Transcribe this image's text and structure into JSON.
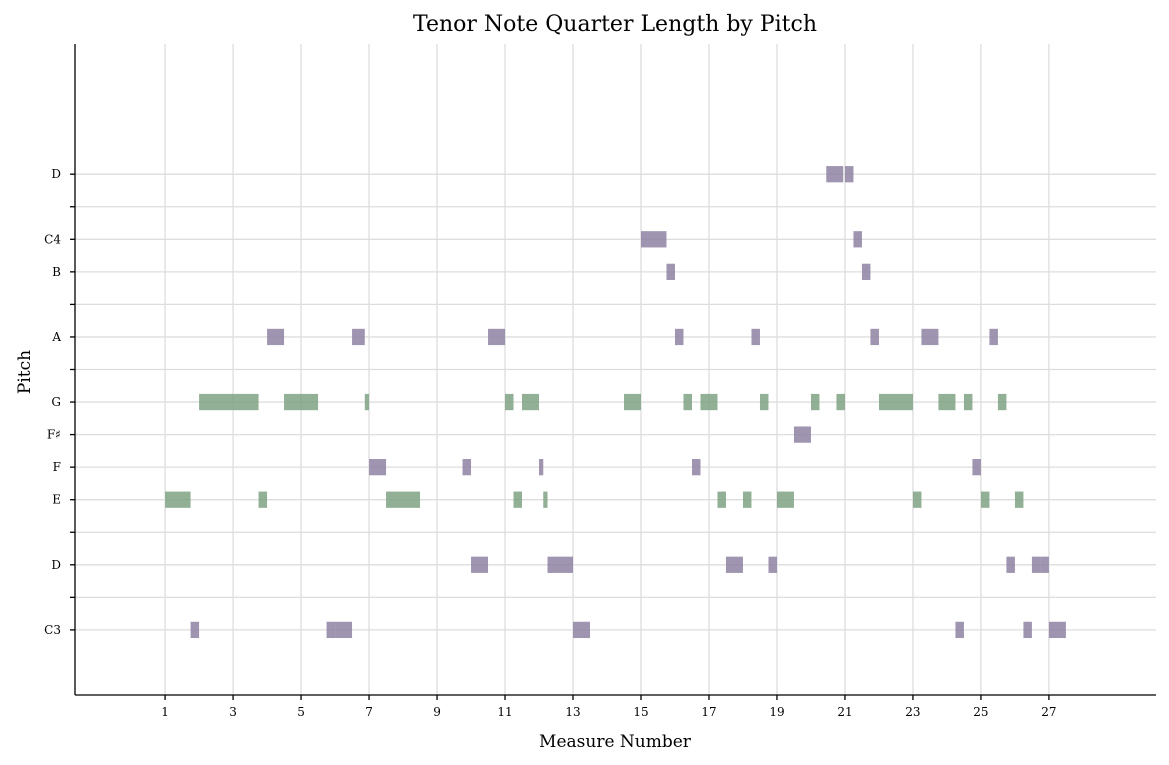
{
  "chart_data": {
    "type": "piano-roll",
    "title": "Tenor Note Quarter Length by Pitch",
    "xlabel": "Measure Number",
    "ylabel": "Pitch",
    "xlim": [
      -1.65,
      30.15
    ],
    "x_ticks": [
      1,
      3,
      5,
      7,
      9,
      11,
      13,
      15,
      17,
      19,
      21,
      23,
      25,
      27
    ],
    "ylim": [
      46,
      66
    ],
    "y_ticks": [
      {
        "midi": 48,
        "label": "C3"
      },
      {
        "midi": 49,
        "label": ""
      },
      {
        "midi": 50,
        "label": "D"
      },
      {
        "midi": 51,
        "label": ""
      },
      {
        "midi": 52,
        "label": "E"
      },
      {
        "midi": 53,
        "label": "F"
      },
      {
        "midi": 54,
        "label": "F♯"
      },
      {
        "midi": 55,
        "label": "G"
      },
      {
        "midi": 56,
        "label": ""
      },
      {
        "midi": 57,
        "label": "A"
      },
      {
        "midi": 58,
        "label": ""
      },
      {
        "midi": 59,
        "label": "B"
      },
      {
        "midi": 60,
        "label": "C4"
      },
      {
        "midi": 61,
        "label": ""
      },
      {
        "midi": 62,
        "label": "D"
      }
    ],
    "grid": true,
    "colors": {
      "purple": "#8e83a3",
      "green": "#7fa283"
    },
    "notes": [
      {
        "pitch": 62,
        "start": 20.45,
        "end": 20.95,
        "color": "purple"
      },
      {
        "pitch": 62,
        "start": 21.0,
        "end": 21.25,
        "color": "purple"
      },
      {
        "pitch": 60,
        "start": 15.0,
        "end": 15.75,
        "color": "purple"
      },
      {
        "pitch": 60,
        "start": 21.25,
        "end": 21.5,
        "color": "purple"
      },
      {
        "pitch": 59,
        "start": 15.75,
        "end": 16.0,
        "color": "purple"
      },
      {
        "pitch": 59,
        "start": 21.5,
        "end": 21.75,
        "color": "purple"
      },
      {
        "pitch": 57,
        "start": 4.0,
        "end": 4.5,
        "color": "purple"
      },
      {
        "pitch": 57,
        "start": 6.5,
        "end": 6.875,
        "color": "purple"
      },
      {
        "pitch": 57,
        "start": 10.5,
        "end": 11.0,
        "color": "purple"
      },
      {
        "pitch": 57,
        "start": 16.0,
        "end": 16.25,
        "color": "purple"
      },
      {
        "pitch": 57,
        "start": 18.25,
        "end": 18.5,
        "color": "purple"
      },
      {
        "pitch": 57,
        "start": 21.75,
        "end": 22.0,
        "color": "purple"
      },
      {
        "pitch": 57,
        "start": 23.25,
        "end": 23.75,
        "color": "purple"
      },
      {
        "pitch": 57,
        "start": 25.25,
        "end": 25.5,
        "color": "purple"
      },
      {
        "pitch": 55,
        "start": 2.0,
        "end": 3.75,
        "color": "green"
      },
      {
        "pitch": 55,
        "start": 4.5,
        "end": 5.5,
        "color": "green"
      },
      {
        "pitch": 55,
        "start": 6.875,
        "end": 7.0,
        "color": "green"
      },
      {
        "pitch": 55,
        "start": 11.0,
        "end": 11.25,
        "color": "green"
      },
      {
        "pitch": 55,
        "start": 11.5,
        "end": 12.0,
        "color": "green"
      },
      {
        "pitch": 55,
        "start": 14.5,
        "end": 15.0,
        "color": "green"
      },
      {
        "pitch": 55,
        "start": 16.25,
        "end": 16.5,
        "color": "green"
      },
      {
        "pitch": 55,
        "start": 16.75,
        "end": 17.25,
        "color": "green"
      },
      {
        "pitch": 55,
        "start": 18.5,
        "end": 18.75,
        "color": "green"
      },
      {
        "pitch": 55,
        "start": 20.0,
        "end": 20.25,
        "color": "green"
      },
      {
        "pitch": 55,
        "start": 20.75,
        "end": 21.0,
        "color": "green"
      },
      {
        "pitch": 55,
        "start": 22.0,
        "end": 23.0,
        "color": "green"
      },
      {
        "pitch": 55,
        "start": 23.75,
        "end": 24.25,
        "color": "green"
      },
      {
        "pitch": 55,
        "start": 24.5,
        "end": 24.75,
        "color": "green"
      },
      {
        "pitch": 55,
        "start": 25.5,
        "end": 25.75,
        "color": "green"
      },
      {
        "pitch": 54,
        "start": 19.5,
        "end": 20.0,
        "color": "purple"
      },
      {
        "pitch": 53,
        "start": 7.0,
        "end": 7.5,
        "color": "purple"
      },
      {
        "pitch": 53,
        "start": 9.75,
        "end": 10.0,
        "color": "purple"
      },
      {
        "pitch": 53,
        "start": 12.0,
        "end": 12.125,
        "color": "purple"
      },
      {
        "pitch": 53,
        "start": 16.5,
        "end": 16.75,
        "color": "purple"
      },
      {
        "pitch": 53,
        "start": 24.75,
        "end": 25.0,
        "color": "purple"
      },
      {
        "pitch": 52,
        "start": 1.0,
        "end": 1.75,
        "color": "green"
      },
      {
        "pitch": 52,
        "start": 3.75,
        "end": 4.0,
        "color": "green"
      },
      {
        "pitch": 52,
        "start": 7.5,
        "end": 8.5,
        "color": "green"
      },
      {
        "pitch": 52,
        "start": 11.25,
        "end": 11.5,
        "color": "green"
      },
      {
        "pitch": 52,
        "start": 12.125,
        "end": 12.25,
        "color": "green"
      },
      {
        "pitch": 52,
        "start": 17.25,
        "end": 17.5,
        "color": "green"
      },
      {
        "pitch": 52,
        "start": 18.0,
        "end": 18.25,
        "color": "green"
      },
      {
        "pitch": 52,
        "start": 19.0,
        "end": 19.5,
        "color": "green"
      },
      {
        "pitch": 52,
        "start": 23.0,
        "end": 23.25,
        "color": "green"
      },
      {
        "pitch": 52,
        "start": 25.0,
        "end": 25.25,
        "color": "green"
      },
      {
        "pitch": 52,
        "start": 26.0,
        "end": 26.25,
        "color": "green"
      },
      {
        "pitch": 50,
        "start": 10.0,
        "end": 10.5,
        "color": "purple"
      },
      {
        "pitch": 50,
        "start": 12.25,
        "end": 12.5,
        "color": "purple"
      },
      {
        "pitch": 50,
        "start": 12.5,
        "end": 13.0,
        "color": "purple"
      },
      {
        "pitch": 50,
        "start": 17.5,
        "end": 18.0,
        "color": "purple"
      },
      {
        "pitch": 50,
        "start": 18.75,
        "end": 19.0,
        "color": "purple"
      },
      {
        "pitch": 50,
        "start": 25.75,
        "end": 26.0,
        "color": "purple"
      },
      {
        "pitch": 50,
        "start": 26.5,
        "end": 26.75,
        "color": "purple"
      },
      {
        "pitch": 50,
        "start": 26.75,
        "end": 27.0,
        "color": "purple"
      },
      {
        "pitch": 48,
        "start": 1.75,
        "end": 2.0,
        "color": "purple"
      },
      {
        "pitch": 48,
        "start": 5.75,
        "end": 6.0,
        "color": "purple"
      },
      {
        "pitch": 48,
        "start": 6.0,
        "end": 6.5,
        "color": "purple"
      },
      {
        "pitch": 48,
        "start": 13.0,
        "end": 13.5,
        "color": "purple"
      },
      {
        "pitch": 48,
        "start": 24.25,
        "end": 24.5,
        "color": "purple"
      },
      {
        "pitch": 48,
        "start": 26.25,
        "end": 26.5,
        "color": "purple"
      },
      {
        "pitch": 48,
        "start": 27.0,
        "end": 27.5,
        "color": "purple"
      }
    ]
  }
}
